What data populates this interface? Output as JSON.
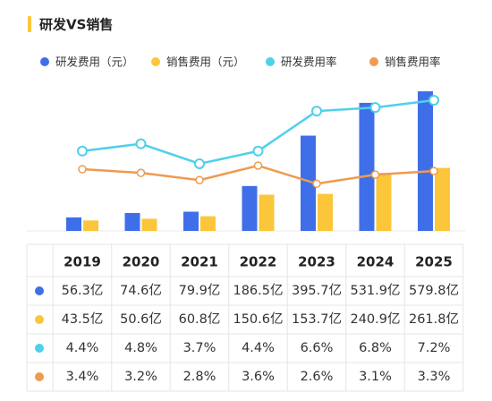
{
  "chart_data": {
    "type": "bar",
    "title": "研发VS销售",
    "categories": [
      "2019",
      "2020",
      "2021",
      "2022",
      "2023",
      "2024",
      "2025"
    ],
    "series": [
      {
        "name": "研发费用（元）",
        "type": "bar",
        "color": "#3f6fe8",
        "values": [
          56.3,
          74.6,
          79.9,
          186.5,
          395.7,
          531.9,
          579.8
        ],
        "value_labels": [
          "56.3亿",
          "74.6亿",
          "79.9亿",
          "186.5亿",
          "395.7亿",
          "531.9亿",
          "579.8亿"
        ]
      },
      {
        "name": "销售费用（元）",
        "type": "bar",
        "color": "#fbc63a",
        "values": [
          43.5,
          50.6,
          60.8,
          150.6,
          153.7,
          240.9,
          261.8
        ],
        "value_labels": [
          "43.5亿",
          "50.6亿",
          "60.8亿",
          "150.6亿",
          "153.7亿",
          "240.9亿",
          "261.8亿"
        ]
      },
      {
        "name": "研发费用率",
        "type": "line",
        "axis": "y2",
        "color": "#4fd0ea",
        "values": [
          4.4,
          4.8,
          3.7,
          4.4,
          6.6,
          6.8,
          7.2
        ],
        "value_labels": [
          "4.4%",
          "4.8%",
          "3.7%",
          "4.4%",
          "6.6%",
          "6.8%",
          "7.2%"
        ]
      },
      {
        "name": "销售费用率",
        "type": "line",
        "axis": "y2",
        "color": "#ee9b4f",
        "values": [
          3.4,
          3.2,
          2.8,
          3.6,
          2.6,
          3.1,
          3.3
        ],
        "value_labels": [
          "3.4%",
          "3.2%",
          "2.8%",
          "3.6%",
          "2.6%",
          "3.1%",
          "3.3%"
        ]
      }
    ]
  }
}
